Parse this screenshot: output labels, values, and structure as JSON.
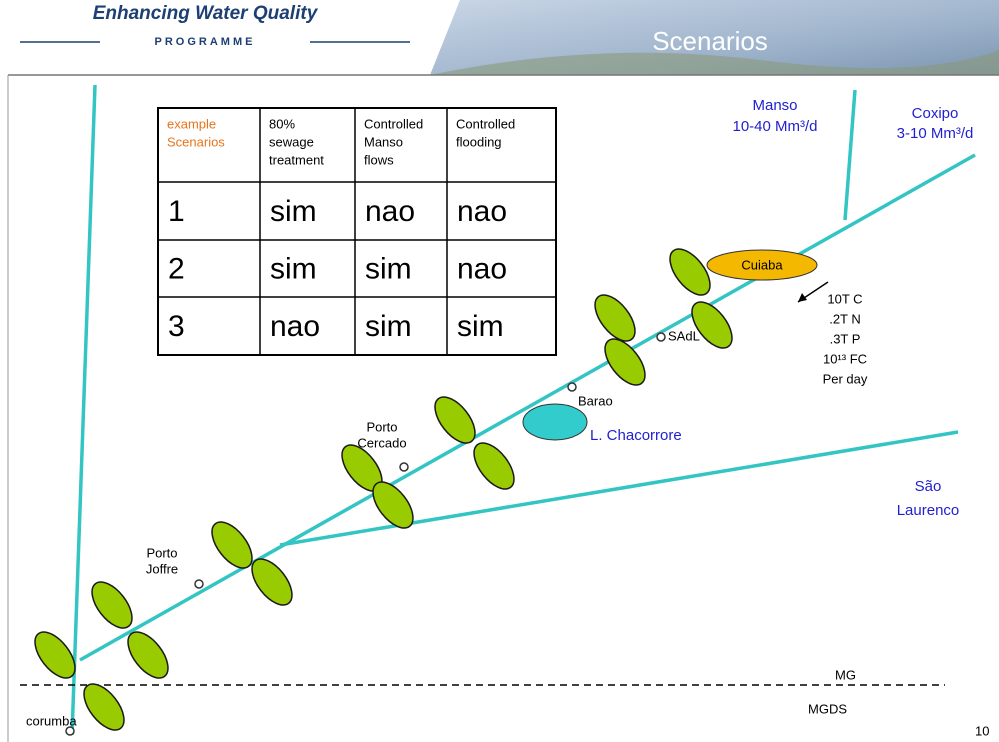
{
  "header": {
    "logo_title": "Enhancing Water Quality",
    "logo_subtitle": "PROGRAMME",
    "title": "Scenarios"
  },
  "table": {
    "header": [
      [
        "example",
        "Scenarios"
      ],
      [
        "80%",
        "sewage",
        "treatment"
      ],
      [
        "Controlled",
        "Manso",
        "flows"
      ],
      [
        "Controlled",
        "flooding"
      ]
    ],
    "rows": [
      [
        "1",
        "sim",
        "nao",
        "nao"
      ],
      [
        "2",
        "sim",
        "sim",
        "nao"
      ],
      [
        "3",
        "nao",
        "sim",
        "sim"
      ]
    ]
  },
  "labels": {
    "manso": [
      "Manso",
      "10-40 Mm³/d"
    ],
    "coxipo": [
      "Coxipo",
      "3-10 Mm³/d"
    ],
    "cuiaba": "Cuiaba",
    "loads": [
      "10T C",
      ".2T N",
      ".3T P",
      "10¹³ FC",
      "Per day"
    ],
    "sadl": "SAdL",
    "barao": "Barao",
    "chacorrore": "L. Chacorrore",
    "porto_cercado": [
      "Porto",
      "Cercado"
    ],
    "sao_laurenco": [
      "São",
      "Laurenco"
    ],
    "porto_joffre": [
      "Porto",
      "Joffre"
    ],
    "corumba": "corumba",
    "mg": "MG",
    "mgds": "MGDS",
    "page_number": "10"
  }
}
